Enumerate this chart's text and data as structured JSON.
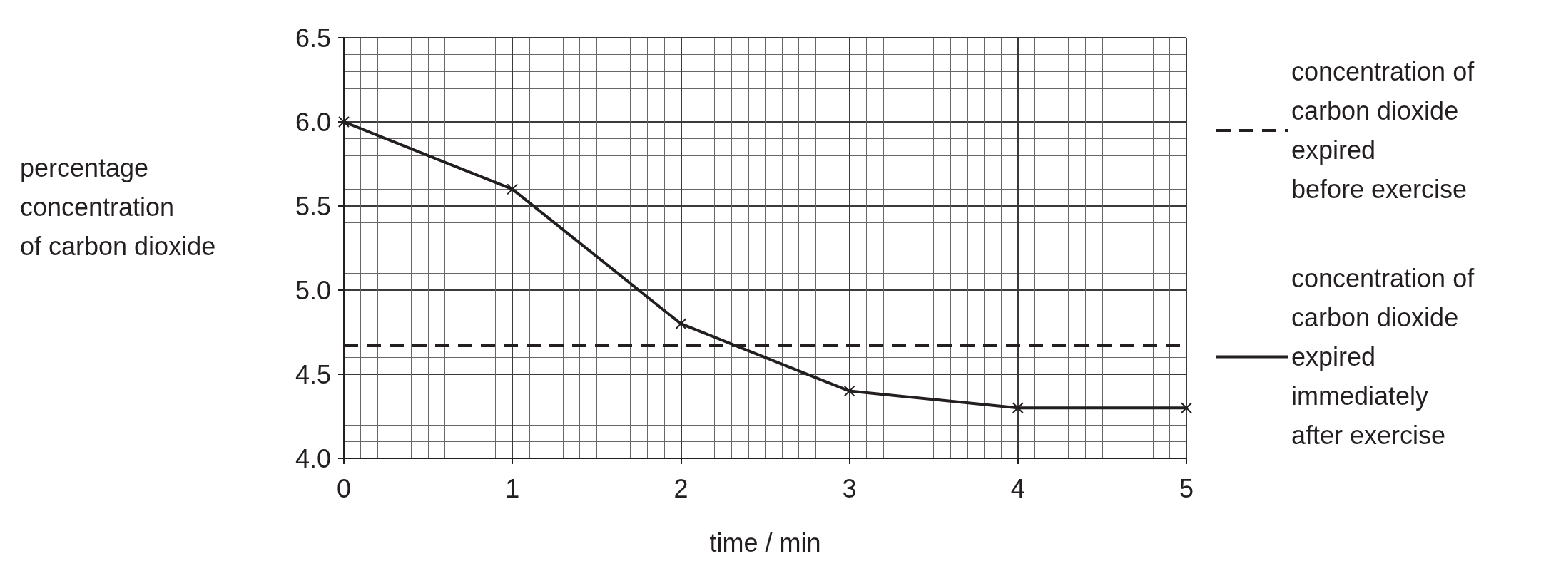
{
  "chart_data": {
    "type": "line",
    "xlabel": "time / min",
    "ylabel": "percentage\nconcentration\nof carbon dioxide",
    "xlim": [
      0,
      5
    ],
    "xticks": [
      0,
      1,
      2,
      3,
      4,
      5
    ],
    "ylim": [
      4.0,
      6.5
    ],
    "yticks": [
      {
        "value": 4,
        "label": "4.0"
      },
      {
        "value": 4.5,
        "label": "4.5"
      },
      {
        "value": 5,
        "label": "5.0"
      },
      {
        "value": 5.5,
        "label": "5.5"
      },
      {
        "value": 6,
        "label": "6.0"
      },
      {
        "value": 6.5,
        "label": "6.5"
      }
    ],
    "grid": true,
    "legend": "right",
    "series": [
      {
        "name": "concentration of\ncarbon dioxide\nexpired\nbefore exercise",
        "color": "#231f20",
        "x": [
          0,
          5
        ],
        "values": [
          4.67,
          4.67
        ],
        "line_style": "dashed",
        "marker": "none"
      },
      {
        "name": "concentration of\ncarbon dioxide\nexpired\nimmediately\nafter exercise",
        "color": "#231f20",
        "x": [
          0,
          1,
          2,
          3,
          4,
          5
        ],
        "values": [
          6.0,
          5.6,
          4.8,
          4.4,
          4.3,
          4.3
        ],
        "line_style": "solid",
        "marker": "cross"
      }
    ]
  }
}
